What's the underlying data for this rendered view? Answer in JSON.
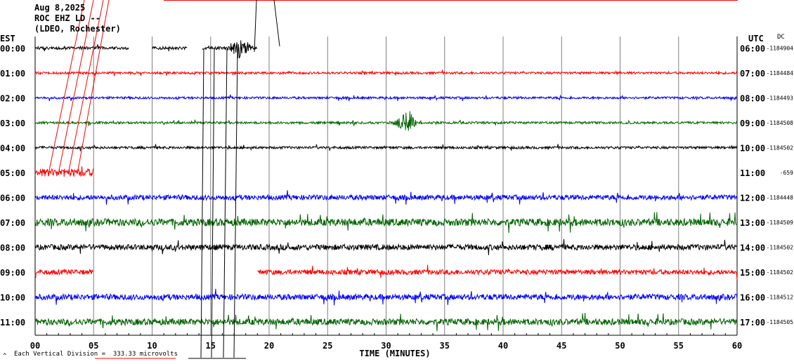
{
  "header": {
    "date": "Aug 8,2025",
    "station": "ROC EHZ LD --",
    "network": "(LDEO, Rochester)"
  },
  "left_zone_label": "EST",
  "right_zone_label": "UTC",
  "dc_label": "DC",
  "footer": {
    "scale_text": "Each Vertical Division =  333.33 microvolts",
    "corner_mark": "^"
  },
  "colors": {
    "black": "#000000",
    "red": "#ff0000",
    "blue": "#0000ff",
    "green": "#006400",
    "grid": "#808080"
  },
  "chart_data": {
    "type": "line",
    "title": "Aug 8,2025 ROC EHZ LD -- (LDEO, Rochester)",
    "xlabel": "TIME (MINUTES)",
    "ylabel": "",
    "xlim": [
      0,
      60
    ],
    "x_ticks": [
      "00",
      "05",
      "10",
      "15",
      "20",
      "25",
      "30",
      "35",
      "40",
      "45",
      "50",
      "55",
      "60"
    ],
    "grid": true,
    "rows": [
      {
        "est": "00:00",
        "utc": "06:00",
        "dc": "-1184904",
        "color": "black",
        "segments": [
          [
            0,
            8
          ],
          [
            10,
            13
          ],
          [
            14.3,
            19
          ]
        ],
        "amp": 1.3,
        "event_min": 17.5
      },
      {
        "est": "01:00",
        "utc": "07:00",
        "dc": "-1184484",
        "color": "red",
        "segments": [
          [
            0,
            60
          ]
        ],
        "amp": 1.0
      },
      {
        "est": "02:00",
        "utc": "08:00",
        "dc": "-1184493",
        "color": "blue",
        "segments": [
          [
            0,
            60
          ]
        ],
        "amp": 1.0
      },
      {
        "est": "03:00",
        "utc": "09:00",
        "dc": "-1184508",
        "color": "green",
        "segments": [
          [
            0,
            60
          ]
        ],
        "amp": 1.0,
        "event_min": 31.8
      },
      {
        "est": "04:00",
        "utc": "10:00",
        "dc": "-1184502",
        "color": "black",
        "segments": [
          [
            0,
            60
          ]
        ],
        "amp": 1.1
      },
      {
        "est": "05:00",
        "utc": "11:00",
        "dc": "-659",
        "color": "red",
        "segments": [
          [
            0,
            5
          ]
        ],
        "amp": 3.5
      },
      {
        "est": "06:00",
        "utc": "12:00",
        "dc": "-1184448",
        "color": "blue",
        "segments": [
          [
            0,
            60
          ]
        ],
        "amp": 2.2
      },
      {
        "est": "07:00",
        "utc": "13:00",
        "dc": "-1184509",
        "color": "green",
        "segments": [
          [
            0,
            60
          ]
        ],
        "amp": 3.2
      },
      {
        "est": "08:00",
        "utc": "14:00",
        "dc": "-1184502",
        "color": "black",
        "segments": [
          [
            0,
            60
          ]
        ],
        "amp": 2.5
      },
      {
        "est": "09:00",
        "utc": "15:00",
        "dc": "-1184502",
        "color": "red",
        "segments": [
          [
            0,
            5
          ],
          [
            19,
            60
          ]
        ],
        "amp": 2.2
      },
      {
        "est": "10:00",
        "utc": "16:00",
        "dc": "-1184512",
        "color": "blue",
        "segments": [
          [
            0,
            60
          ]
        ],
        "amp": 2.5
      },
      {
        "est": "11:00",
        "utc": "17:00",
        "dc": "-1184505",
        "color": "green",
        "segments": [
          [
            0,
            60
          ]
        ],
        "amp": 2.8
      }
    ]
  }
}
